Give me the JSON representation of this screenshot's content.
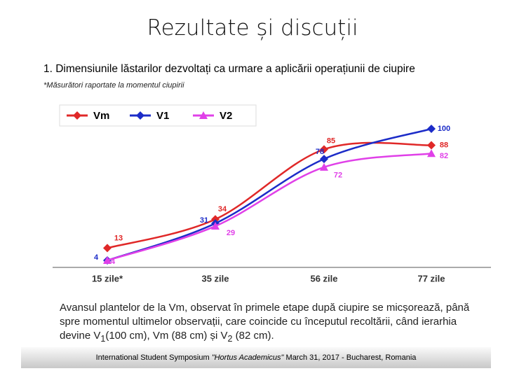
{
  "slide_title": "Rezultate și discuții",
  "subtitle": "1.  Dimensiunile lăstarilor dezvoltați ca urmare a aplicării operațiunii de ciupire",
  "note": "*Măsurători raportate la momentul ciupirii",
  "chart_data": {
    "type": "line",
    "categories": [
      "15 zile*",
      "35 zile",
      "56 zile",
      "77 zile"
    ],
    "series": [
      {
        "name": "Vm",
        "color": "#e02828",
        "marker": "diamond",
        "values": [
          13,
          34,
          85,
          88
        ]
      },
      {
        "name": "V1",
        "color": "#1c2cc8",
        "marker": "diamond",
        "values": [
          4,
          31,
          78,
          100
        ]
      },
      {
        "name": "V2",
        "color": "#e040e8",
        "marker": "triangle",
        "values": [
          4,
          29,
          72,
          82
        ]
      }
    ],
    "legend": "top-left",
    "data_labels": true,
    "smooth": true
  },
  "paragraph": [
    "Avansul plantelor de la Vm, observat în primele etape după ciupire se micșorează, până spre momentul ultimelor observații, care coincide cu începutul recoltării, când ierarhia devine  V",
    "1",
    "(100 cm), Vm (88 cm) și V",
    "2",
    " (82 cm)."
  ],
  "footer": [
    "International Student Symposium ",
    "\"Hortus Academicus\"",
    " March 31, 2017 - Bucharest, Romania"
  ]
}
